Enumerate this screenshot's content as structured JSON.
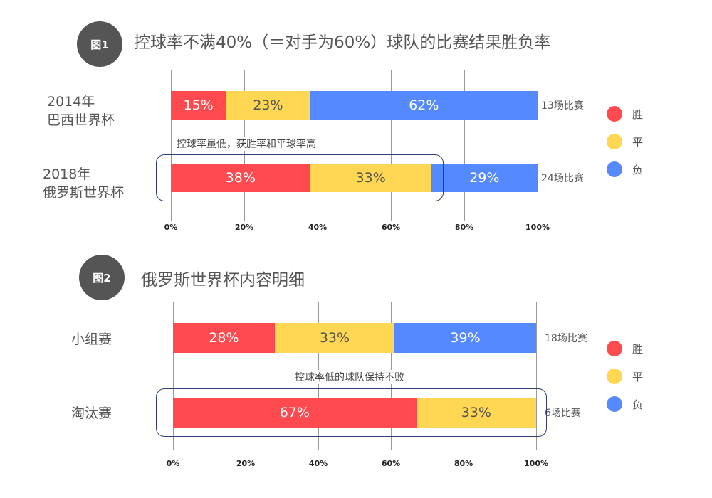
{
  "colors": {
    "win": "#ff4a4f",
    "draw": "#ffd752",
    "loss": "#5589ff",
    "win_text": "#ffffff",
    "draw_text": "#555555",
    "loss_text": "#ffffff"
  },
  "legend": [
    {
      "key": "win",
      "label": "胜"
    },
    {
      "key": "draw",
      "label": "平"
    },
    {
      "key": "loss",
      "label": "负"
    }
  ],
  "chart_data": [
    {
      "type": "bar",
      "orientation": "horizontal-stacked",
      "badge": "图1",
      "title": "控球率不满40%（＝对手为60%）球队的比赛结果胜负率",
      "xlim": [
        0,
        100
      ],
      "ticks": [
        "0%",
        "20%",
        "40%",
        "60%",
        "80%",
        "100%"
      ],
      "rows": [
        {
          "category": [
            "2014年",
            "巴西世界杯"
          ],
          "values": [
            15,
            23,
            62
          ],
          "labels": [
            "15%",
            "23%",
            "62%"
          ],
          "count": "13场比赛"
        },
        {
          "category": [
            "2018年",
            "俄罗斯世界杯"
          ],
          "values": [
            38,
            33,
            29
          ],
          "labels": [
            "38%",
            "33%",
            "29%"
          ],
          "count": "24场比赛"
        }
      ],
      "annotation": "控球率虽低，获胜率和平球率高"
    },
    {
      "type": "bar",
      "orientation": "horizontal-stacked",
      "badge": "图2",
      "title": "俄罗斯世界杯内容明细",
      "xlim": [
        0,
        100
      ],
      "ticks": [
        "0%",
        "20%",
        "40%",
        "60%",
        "80%",
        "100%"
      ],
      "rows": [
        {
          "category": [
            "小组赛"
          ],
          "values": [
            28,
            33,
            39
          ],
          "labels": [
            "28%",
            "33%",
            "39%"
          ],
          "count": "18场比赛"
        },
        {
          "category": [
            "淘汰赛"
          ],
          "values": [
            67,
            33,
            0
          ],
          "labels": [
            "67%",
            "33%",
            ""
          ],
          "count": "6场比赛"
        }
      ],
      "annotation": "控球率低的球队保持不败"
    }
  ]
}
